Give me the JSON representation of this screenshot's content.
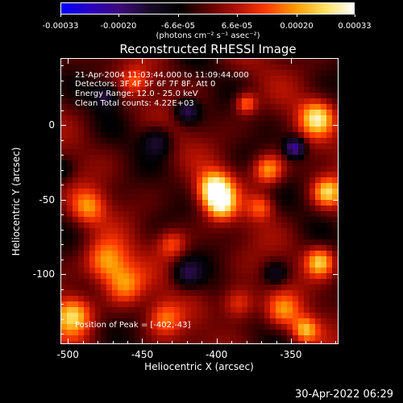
{
  "title": "Reconstructed RHESSI Image",
  "colorbar": {
    "tick_labels": [
      "-0.00033",
      "-0.00020",
      "-6.6e-05",
      "6.6e-05",
      "0.00020",
      "0.00033"
    ],
    "tick_values": [
      -0.00033,
      -0.0002,
      -6.6e-05,
      6.6e-05,
      0.0002,
      0.00033
    ],
    "units": "(photons cm⁻² s⁻¹ asec⁻²)",
    "colors": [
      "#0000ff",
      "#2a00c0",
      "#3c0a7a",
      "#1a0a2a",
      "#000000",
      "#5a0000",
      "#b01000",
      "#ff3a00",
      "#ff9a00",
      "#ffe060",
      "#ffffff"
    ]
  },
  "annotations": {
    "time_range": "21-Apr-2004 11:03:44.000 to 11:09:44.000",
    "detectors": "Detectors: 3F 4F 5F 6F 7F 8F, Att 0",
    "energy": "Energy Range: 12.0 - 25.0 keV",
    "clean": "Clean    Total counts: 4.22E+03",
    "peak": "Position of Peak = [-402,-43]"
  },
  "axes": {
    "xlabel": "Heliocentric X (arcsec)",
    "ylabel": "Heliocentric Y (arcsec)",
    "x_ticks": [
      "-500",
      "-450",
      "-400",
      "-350"
    ],
    "y_ticks": [
      "0",
      "-50",
      "-100"
    ]
  },
  "chart_data": {
    "type": "heatmap",
    "title": "Reconstructed RHESSI Image",
    "xlabel": "Heliocentric X (arcsec)",
    "ylabel": "Heliocentric Y (arcsec)",
    "xlim": [
      -505,
      -318
    ],
    "ylim": [
      -147,
      45
    ],
    "x_ticks": [
      -500,
      -450,
      -400,
      -350
    ],
    "y_ticks": [
      0,
      -50,
      -100
    ],
    "zlim": [
      -0.00033,
      0.00033
    ],
    "peak": [
      -402,
      -43
    ],
    "sources": [
      {
        "x": -401,
        "y": -43,
        "amp": 0.00033,
        "sigma": 8
      },
      {
        "x": -397,
        "y": -54,
        "amp": 0.00022,
        "sigma": 7
      },
      {
        "x": -475,
        "y": -92,
        "amp": 0.00022,
        "sigma": 10
      },
      {
        "x": -462,
        "y": -108,
        "amp": 0.00018,
        "sigma": 9
      },
      {
        "x": -497,
        "y": -128,
        "amp": 0.00027,
        "sigma": 9
      },
      {
        "x": -487,
        "y": -55,
        "amp": 0.00017,
        "sigma": 8
      },
      {
        "x": -430,
        "y": -80,
        "amp": 0.00015,
        "sigma": 7
      },
      {
        "x": -365,
        "y": -30,
        "amp": 0.00022,
        "sigma": 7
      },
      {
        "x": -370,
        "y": -55,
        "amp": 0.00014,
        "sigma": 6
      },
      {
        "x": -332,
        "y": 5,
        "amp": 0.00025,
        "sigma": 8
      },
      {
        "x": -325,
        "y": -45,
        "amp": 0.00024,
        "sigma": 7
      },
      {
        "x": -330,
        "y": -92,
        "amp": 0.00025,
        "sigma": 7
      },
      {
        "x": -385,
        "y": -120,
        "amp": 0.00017,
        "sigma": 8
      },
      {
        "x": -355,
        "y": -125,
        "amp": 0.00016,
        "sigma": 8
      },
      {
        "x": -340,
        "y": -138,
        "amp": 0.0002,
        "sigma": 6
      },
      {
        "x": -380,
        "y": 15,
        "amp": 0.00019,
        "sigma": 5
      },
      {
        "x": -455,
        "y": 30,
        "amp": 0.00012,
        "sigma": 6
      },
      {
        "x": -435,
        "y": -130,
        "amp": 0.00015,
        "sigma": 8
      },
      {
        "x": -420,
        "y": 10,
        "amp": -0.00018,
        "sigma": 6
      },
      {
        "x": -347,
        "y": -15,
        "amp": -0.00024,
        "sigma": 5
      },
      {
        "x": -475,
        "y": 20,
        "amp": -0.00014,
        "sigma": 6
      },
      {
        "x": -440,
        "y": -10,
        "amp": -0.00014,
        "sigma": 7
      },
      {
        "x": -360,
        "y": -100,
        "amp": -0.00012,
        "sigma": 6
      },
      {
        "x": -420,
        "y": -100,
        "amp": -0.00013,
        "sigma": 7
      },
      {
        "x": -505,
        "y": -30,
        "amp": -0.0001,
        "sigma": 6
      }
    ]
  },
  "footer": {
    "timestamp": "30-Apr-2022 06:29"
  }
}
